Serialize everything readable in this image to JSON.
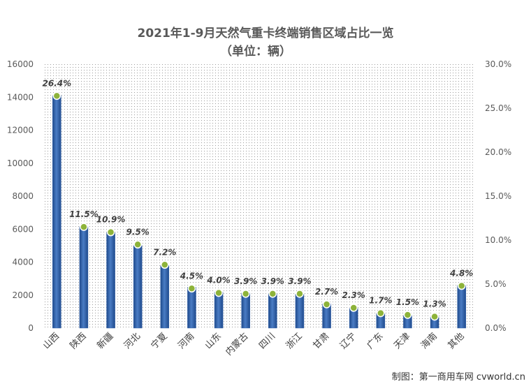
{
  "chart_data": {
    "type": "bar",
    "title": "2021年1-9月天然气重卡终端销售区域占比一览",
    "subtitle": "（单位：辆）",
    "categories": [
      "山西",
      "陕西",
      "新疆",
      "河北",
      "宁夏",
      "河南",
      "山东",
      "内蒙古",
      "四川",
      "浙江",
      "甘肃",
      "辽宁",
      "广东",
      "天津",
      "海南",
      "其他"
    ],
    "values": [
      14100,
      6150,
      5800,
      5000,
      3800,
      2480,
      2180,
      2120,
      2080,
      2060,
      1470,
      1210,
      890,
      760,
      680,
      2590
    ],
    "percent_labels": [
      "26.4%",
      "11.5%",
      "10.9%",
      "9.5%",
      "7.2%",
      "4.5%",
      "4.0%",
      "3.9%",
      "3.9%",
      "3.9%",
      "2.7%",
      "2.3%",
      "1.7%",
      "1.5%",
      "1.3%",
      "4.8%"
    ],
    "percent_values": [
      26.4,
      11.5,
      10.9,
      9.5,
      7.2,
      4.5,
      4.0,
      3.9,
      3.9,
      3.9,
      2.7,
      2.3,
      1.7,
      1.5,
      1.3,
      4.8
    ],
    "ylim": [
      0,
      16000
    ],
    "y_ticks": [
      "0",
      "2000",
      "4000",
      "6000",
      "8000",
      "10000",
      "12000",
      "14000",
      "16000"
    ],
    "y2lim": [
      0,
      30
    ],
    "y2_ticks": [
      "0.0%",
      "5.0%",
      "10.0%",
      "15.0%",
      "20.0%",
      "25.0%",
      "30.0%"
    ],
    "bar_color": "#2e5fa8",
    "marker_color": "#8db33a",
    "background": "dotted",
    "credit": "制图：第一商用车网 cvworld.cn"
  }
}
